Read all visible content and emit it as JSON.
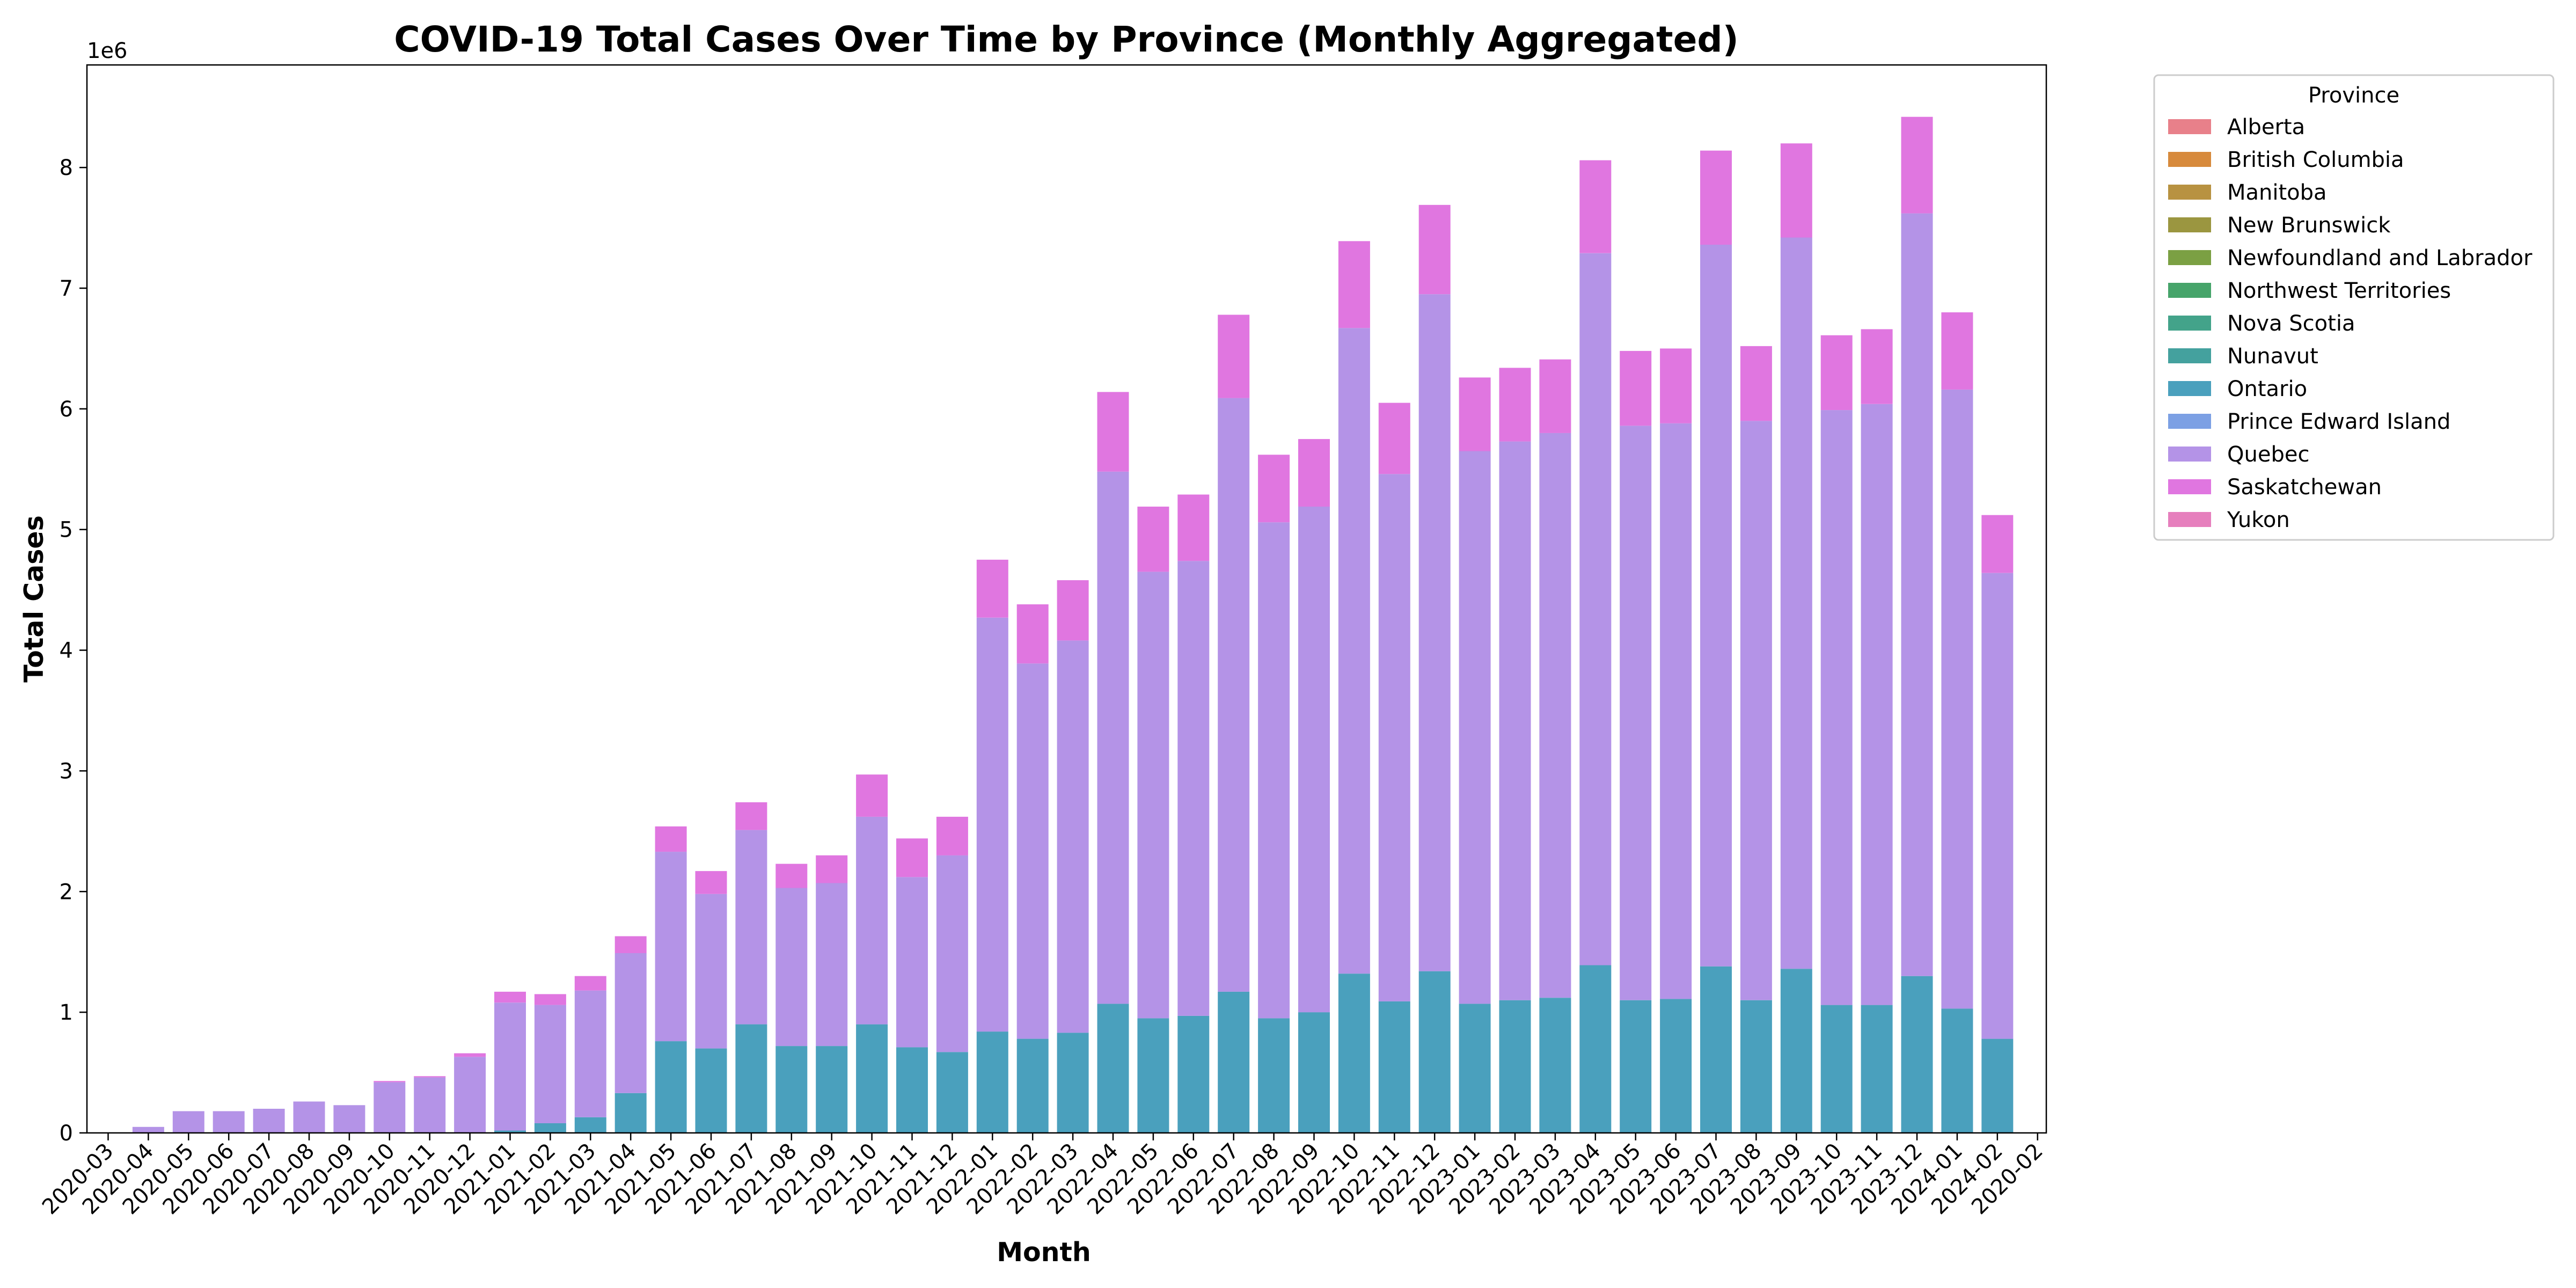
{
  "chart_data": {
    "type": "bar",
    "stacked": true,
    "title": "COVID-19 Total Cases Over Time by Province (Monthly Aggregated)",
    "xlabel": "Month",
    "ylabel": "Total Cases",
    "y_offset_label": "1e6",
    "y_ticks": [
      "0",
      "1",
      "2",
      "3",
      "4",
      "5",
      "6",
      "7",
      "8"
    ],
    "ylim": [
      0,
      8.85
    ],
    "grid": false,
    "legend_title": "Province",
    "legend_position": "outside-top-right",
    "categories": [
      "2020-03",
      "2020-04",
      "2020-05",
      "2020-06",
      "2020-07",
      "2020-08",
      "2020-09",
      "2020-10",
      "2020-11",
      "2020-12",
      "2021-01",
      "2021-02",
      "2021-03",
      "2021-04",
      "2021-05",
      "2021-06",
      "2021-07",
      "2021-08",
      "2021-09",
      "2021-10",
      "2021-11",
      "2021-12",
      "2022-01",
      "2022-02",
      "2022-03",
      "2022-04",
      "2022-05",
      "2022-06",
      "2022-07",
      "2022-08",
      "2022-09",
      "2022-10",
      "2022-11",
      "2022-12",
      "2023-01",
      "2023-02",
      "2023-03",
      "2023-04",
      "2023-05",
      "2023-06",
      "2023-07",
      "2023-08",
      "2023-09",
      "2023-10",
      "2023-11",
      "2023-12",
      "2024-01",
      "2024-02",
      "2020-02"
    ],
    "series": [
      {
        "name": "Alberta",
        "color": "#e8808a",
        "values": [
          0,
          0,
          0,
          0,
          0,
          0,
          0,
          0,
          0,
          0,
          0,
          0,
          0,
          0,
          0,
          0,
          0,
          0,
          0,
          0,
          0,
          0,
          0,
          0,
          0,
          0,
          0,
          0,
          0,
          0,
          0,
          0,
          0,
          0,
          0,
          0,
          0,
          0,
          0,
          0,
          0,
          0,
          0,
          0,
          0,
          0,
          0,
          0,
          0
        ]
      },
      {
        "name": "British Columbia",
        "color": "#d78a3c",
        "values": [
          0,
          0,
          0,
          0,
          0,
          0,
          0,
          0,
          0,
          0,
          0,
          0,
          0,
          0,
          0,
          0,
          0,
          0,
          0,
          0,
          0,
          0,
          0,
          0,
          0,
          0,
          0,
          0,
          0,
          0,
          0,
          0,
          0,
          0,
          0,
          0,
          0,
          0,
          0,
          0,
          0,
          0,
          0,
          0,
          0,
          0,
          0,
          0,
          0
        ]
      },
      {
        "name": "Manitoba",
        "color": "#b89241",
        "values": [
          0,
          0,
          0,
          0,
          0,
          0,
          0,
          0,
          0,
          0,
          0,
          0,
          0,
          0,
          0,
          0,
          0,
          0,
          0,
          0,
          0,
          0,
          0,
          0,
          0,
          0,
          0,
          0,
          0,
          0,
          0,
          0,
          0,
          0,
          0,
          0,
          0,
          0,
          0,
          0,
          0,
          0,
          0,
          0,
          0,
          0,
          0,
          0,
          0
        ]
      },
      {
        "name": "New Brunswick",
        "color": "#9b9640",
        "values": [
          0,
          0,
          0,
          0,
          0,
          0,
          0,
          0,
          0,
          0,
          0,
          0,
          0,
          0,
          0,
          0,
          0,
          0,
          0,
          0,
          0,
          0,
          0,
          0,
          0,
          0,
          0,
          0,
          0,
          0,
          0,
          0,
          0,
          0,
          0,
          0,
          0,
          0,
          0,
          0,
          0,
          0,
          0,
          0,
          0,
          0,
          0,
          0,
          0
        ]
      },
      {
        "name": "Newfoundland and Labrador",
        "color": "#7ba043",
        "values": [
          0,
          0,
          0,
          0,
          0,
          0,
          0,
          0,
          0,
          0,
          0,
          0,
          0,
          0,
          0,
          0,
          0,
          0,
          0,
          0,
          0,
          0,
          0,
          0,
          0,
          0,
          0,
          0,
          0,
          0,
          0,
          0,
          0,
          0,
          0,
          0,
          0,
          0,
          0,
          0,
          0,
          0,
          0,
          0,
          0,
          0,
          0,
          0,
          0
        ]
      },
      {
        "name": "Northwest Territories",
        "color": "#46a46a",
        "values": [
          0,
          0,
          0,
          0,
          0,
          0,
          0,
          0,
          0,
          0,
          0,
          0,
          0,
          0,
          0,
          0,
          0,
          0,
          0,
          0,
          0,
          0,
          0,
          0,
          0,
          0,
          0,
          0,
          0,
          0,
          0,
          0,
          0,
          0,
          0,
          0,
          0,
          0,
          0,
          0,
          0,
          0,
          0,
          0,
          0,
          0,
          0,
          0,
          0
        ]
      },
      {
        "name": "Nova Scotia",
        "color": "#43a38a",
        "values": [
          0,
          0,
          0,
          0,
          0,
          0,
          0,
          0,
          0,
          0,
          0,
          0,
          0,
          0,
          0,
          0,
          0,
          0,
          0,
          0,
          0,
          0,
          0,
          0,
          0,
          0,
          0,
          0,
          0,
          0,
          0,
          0,
          0,
          0,
          0,
          0,
          0,
          0,
          0,
          0,
          0,
          0,
          0,
          0,
          0,
          0,
          0,
          0,
          0
        ]
      },
      {
        "name": "Nunavut",
        "color": "#44a19e",
        "values": [
          0,
          0,
          0,
          0,
          0,
          0,
          0,
          0,
          0,
          0,
          0,
          0,
          0,
          0,
          0,
          0,
          0,
          0,
          0,
          0,
          0,
          0,
          0,
          0,
          0,
          0,
          0,
          0,
          0,
          0,
          0,
          0,
          0,
          0,
          0,
          0,
          0,
          0,
          0,
          0,
          0,
          0,
          0,
          0,
          0,
          0,
          0,
          0,
          0
        ]
      },
      {
        "name": "Ontario",
        "color": "#4aa0bd",
        "values": [
          0,
          0,
          0,
          0,
          0,
          0,
          0,
          0,
          0,
          0,
          0.02,
          0.08,
          0.13,
          0.33,
          0.76,
          0.7,
          0.9,
          0.72,
          0.72,
          0.9,
          0.71,
          0.67,
          0.84,
          0.78,
          0.83,
          1.07,
          0.95,
          0.97,
          1.17,
          0.95,
          1.0,
          1.32,
          1.09,
          1.34,
          1.07,
          1.1,
          1.12,
          1.39,
          1.1,
          1.11,
          1.38,
          1.1,
          1.36,
          1.06,
          1.06,
          1.3,
          1.03,
          0.78,
          0
        ]
      },
      {
        "name": "Prince Edward Island",
        "color": "#7ca0e4",
        "values": [
          0,
          0,
          0,
          0,
          0,
          0,
          0,
          0,
          0,
          0,
          0,
          0,
          0,
          0,
          0,
          0,
          0,
          0,
          0,
          0,
          0,
          0,
          0,
          0,
          0,
          0,
          0,
          0,
          0,
          0,
          0,
          0,
          0,
          0,
          0,
          0,
          0,
          0,
          0,
          0,
          0,
          0,
          0,
          0,
          0,
          0,
          0,
          0,
          0
        ]
      },
      {
        "name": "Quebec",
        "color": "#b493e7",
        "values": [
          0,
          0.05,
          0.18,
          0.18,
          0.2,
          0.26,
          0.23,
          0.42,
          0.46,
          0.63,
          1.06,
          0.98,
          1.05,
          1.16,
          1.57,
          1.28,
          1.61,
          1.31,
          1.35,
          1.72,
          1.41,
          1.63,
          3.43,
          3.11,
          3.25,
          4.41,
          3.7,
          3.77,
          4.92,
          4.11,
          4.19,
          5.35,
          4.37,
          5.61,
          4.58,
          4.63,
          4.68,
          5.9,
          4.76,
          4.77,
          5.98,
          4.8,
          6.06,
          4.93,
          4.98,
          6.32,
          5.13,
          3.86,
          0
        ]
      },
      {
        "name": "Saskatchewan",
        "color": "#e076e0",
        "values": [
          0,
          0,
          0,
          0,
          0,
          0,
          0,
          0.01,
          0.01,
          0.03,
          0.09,
          0.09,
          0.12,
          0.14,
          0.21,
          0.19,
          0.23,
          0.2,
          0.23,
          0.35,
          0.32,
          0.32,
          0.48,
          0.49,
          0.5,
          0.66,
          0.54,
          0.55,
          0.69,
          0.56,
          0.56,
          0.72,
          0.59,
          0.74,
          0.61,
          0.61,
          0.61,
          0.77,
          0.62,
          0.62,
          0.78,
          0.62,
          0.78,
          0.62,
          0.62,
          0.8,
          0.64,
          0.48,
          0
        ]
      },
      {
        "name": "Yukon",
        "color": "#e67fbd",
        "values": [
          0,
          0,
          0,
          0,
          0,
          0,
          0,
          0,
          0,
          0,
          0,
          0,
          0,
          0,
          0,
          0,
          0,
          0,
          0,
          0,
          0,
          0,
          0,
          0,
          0,
          0,
          0,
          0,
          0,
          0,
          0,
          0,
          0,
          0,
          0,
          0,
          0,
          0,
          0,
          0,
          0,
          0,
          0,
          0,
          0,
          0,
          0,
          0,
          0
        ]
      }
    ]
  }
}
